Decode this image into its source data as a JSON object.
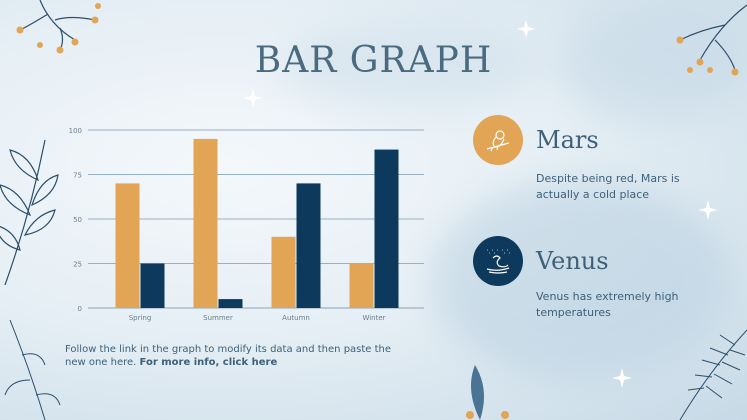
{
  "title": "BAR GRAPH",
  "chart_data": {
    "type": "bar",
    "categories": [
      "Spring",
      "Summer",
      "Autumn",
      "Winter"
    ],
    "series": [
      {
        "color": "#e2a455",
        "values": [
          70,
          95,
          40,
          25
        ]
      },
      {
        "color": "#0d3a5c",
        "values": [
          25,
          5,
          70,
          89
        ]
      }
    ],
    "ylim": [
      0,
      100
    ],
    "yticks": [
      0,
      25,
      50,
      75,
      100
    ],
    "grid": true,
    "title": "",
    "xlabel": "",
    "ylabel": ""
  },
  "note": {
    "text": "Follow the link in the graph to modify its data and then paste the new one here. ",
    "link": "For more info, click here"
  },
  "planets": [
    {
      "name": "Mars",
      "description": "Despite being red, Mars is actually a cold place",
      "icon": "bird-on-branch-icon",
      "color": "#e2a455"
    },
    {
      "name": "Venus",
      "description": "Venus has extremely high temperatures",
      "icon": "swan-icon",
      "color": "#0d3a5c"
    }
  ]
}
